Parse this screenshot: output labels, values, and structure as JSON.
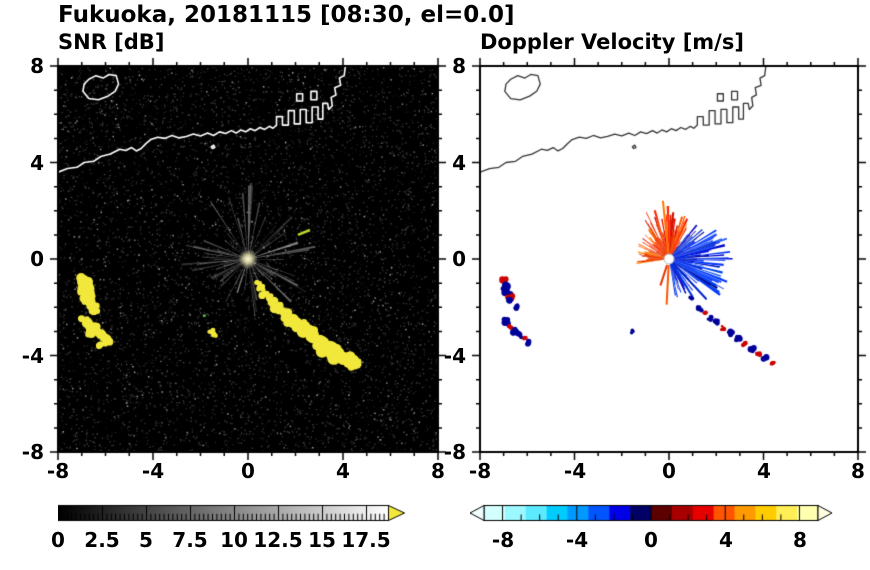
{
  "title": "Fukuoka, 20181115 [08:30, el=0.0]",
  "coastline": [
    {
      "closed": true,
      "points": [
        [
          -6.95,
          6.95
        ],
        [
          -6.7,
          6.65
        ],
        [
          -6.3,
          6.6
        ],
        [
          -5.9,
          6.75
        ],
        [
          -5.6,
          6.95
        ],
        [
          -5.45,
          7.25
        ],
        [
          -5.55,
          7.6
        ],
        [
          -5.85,
          7.65
        ],
        [
          -6.1,
          7.5
        ],
        [
          -6.4,
          7.6
        ],
        [
          -6.7,
          7.45
        ],
        [
          -6.9,
          7.25
        ]
      ]
    },
    {
      "closed": false,
      "points": [
        [
          -8,
          3.6
        ],
        [
          -7.6,
          3.75
        ],
        [
          -7.2,
          3.8
        ],
        [
          -6.9,
          4.0
        ],
        [
          -6.5,
          4.05
        ],
        [
          -6.2,
          4.25
        ],
        [
          -5.8,
          4.35
        ],
        [
          -5.4,
          4.55
        ],
        [
          -5.15,
          4.5
        ],
        [
          -4.9,
          4.62
        ],
        [
          -4.7,
          4.48
        ],
        [
          -4.5,
          4.58
        ],
        [
          -4.3,
          4.78
        ],
        [
          -4.1,
          4.95
        ],
        [
          -3.8,
          5.05
        ],
        [
          -3.5,
          5.0
        ],
        [
          -3.2,
          5.12
        ],
        [
          -2.9,
          5.02
        ],
        [
          -2.6,
          5.08
        ],
        [
          -2.3,
          5.18
        ],
        [
          -2.0,
          5.1
        ],
        [
          -1.7,
          5.22
        ],
        [
          -1.45,
          5.12
        ],
        [
          -1.2,
          5.27
        ],
        [
          -0.95,
          5.2
        ],
        [
          -0.7,
          5.32
        ],
        [
          -0.5,
          5.22
        ],
        [
          -0.3,
          5.35
        ],
        [
          -0.1,
          5.27
        ],
        [
          0.1,
          5.4
        ],
        [
          0.3,
          5.32
        ],
        [
          0.5,
          5.45
        ],
        [
          0.7,
          5.37
        ],
        [
          0.9,
          5.5
        ],
        [
          1.05,
          5.42
        ],
        [
          1.2,
          5.55
        ],
        [
          1.2,
          5.9
        ],
        [
          1.45,
          5.9
        ],
        [
          1.45,
          5.55
        ],
        [
          1.7,
          5.55
        ],
        [
          1.7,
          6.15
        ],
        [
          1.95,
          6.15
        ],
        [
          1.95,
          5.6
        ],
        [
          2.2,
          5.6
        ],
        [
          2.2,
          6.2
        ],
        [
          2.45,
          6.2
        ],
        [
          2.45,
          5.65
        ],
        [
          2.7,
          5.65
        ],
        [
          2.7,
          6.3
        ],
        [
          2.95,
          6.3
        ],
        [
          2.95,
          5.8
        ],
        [
          3.15,
          5.8
        ],
        [
          3.15,
          6.45
        ],
        [
          3.35,
          6.45
        ],
        [
          3.4,
          6.2
        ],
        [
          3.55,
          6.35
        ],
        [
          3.5,
          6.7
        ],
        [
          3.7,
          6.8
        ],
        [
          3.65,
          7.1
        ],
        [
          3.9,
          7.2
        ],
        [
          3.85,
          7.5
        ],
        [
          4.05,
          7.6
        ],
        [
          4.1,
          8.0
        ]
      ]
    },
    {
      "closed": true,
      "points": [
        [
          2.05,
          6.55
        ],
        [
          2.05,
          6.85
        ],
        [
          2.3,
          6.85
        ],
        [
          2.3,
          6.55
        ]
      ]
    },
    {
      "closed": true,
      "points": [
        [
          2.65,
          6.6
        ],
        [
          2.65,
          6.95
        ],
        [
          2.9,
          6.95
        ],
        [
          2.9,
          6.6
        ]
      ]
    },
    {
      "closed": true,
      "points": [
        [
          -1.55,
          4.65
        ],
        [
          -1.45,
          4.72
        ],
        [
          -1.4,
          4.62
        ],
        [
          -1.5,
          4.58
        ]
      ]
    }
  ],
  "chart_data": [
    {
      "type": "heatmap",
      "name": "snr",
      "title": "SNR [dB]",
      "xlim": [
        -8,
        8
      ],
      "ylim": [
        -8,
        8
      ],
      "xticks": [
        -8,
        -4,
        0,
        4,
        8
      ],
      "yticks": [
        8,
        4,
        0,
        -4,
        -8
      ],
      "colorbar": {
        "range": [
          0,
          18.75
        ],
        "ticks": [
          0,
          2.5,
          5,
          7.5,
          10,
          12.5,
          15,
          17.5
        ],
        "colormap": "grayscale",
        "gradient": [
          "#000000",
          "#ffffff"
        ],
        "arrow_color": "#f2e83c"
      },
      "style": {
        "background": "#000000",
        "center": [
          0.0,
          0.0
        ],
        "streak_count": 90,
        "echo_color": "#f2e83c",
        "coast_color": "#ffffff",
        "specks": [
          {
            "x": 2.1,
            "y": 1.0,
            "angle": 22,
            "len": 0.55,
            "color": "#b8d832"
          },
          {
            "x": -1.9,
            "y": -2.35,
            "angle": 0,
            "len": 0.12,
            "color": "#5abf3a"
          }
        ]
      },
      "echoes": [
        [
          [
            -7.0,
            -0.85,
            0.2
          ],
          [
            -6.85,
            -1.05,
            0.24
          ],
          [
            -6.9,
            -1.3,
            0.2
          ],
          [
            -6.75,
            -1.5,
            0.24
          ],
          [
            -6.8,
            -1.75,
            0.18
          ],
          [
            -6.6,
            -1.9,
            0.2
          ],
          [
            -6.45,
            -2.05,
            0.16
          ]
        ],
        [
          [
            -6.9,
            -2.6,
            0.18
          ],
          [
            -6.7,
            -2.78,
            0.2
          ],
          [
            -6.5,
            -2.9,
            0.18
          ],
          [
            -6.62,
            -3.1,
            0.16
          ],
          [
            -6.3,
            -3.05,
            0.14
          ],
          [
            -6.1,
            -3.22,
            0.18
          ],
          [
            -5.95,
            -3.42,
            0.16
          ],
          [
            -6.18,
            -3.52,
            0.13
          ]
        ],
        [
          [
            0.42,
            -1.02,
            0.1
          ],
          [
            0.55,
            -1.2,
            0.13
          ],
          [
            0.7,
            -1.45,
            0.15
          ],
          [
            0.9,
            -1.62,
            0.13
          ],
          [
            1.05,
            -1.8,
            0.17
          ],
          [
            1.25,
            -2.0,
            0.19
          ],
          [
            1.45,
            -2.2,
            0.16
          ],
          [
            1.62,
            -2.35,
            0.18
          ],
          [
            1.8,
            -2.5,
            0.22
          ],
          [
            2.0,
            -2.65,
            0.19
          ],
          [
            2.2,
            -2.8,
            0.22
          ],
          [
            2.45,
            -2.95,
            0.25
          ],
          [
            2.65,
            -3.1,
            0.22
          ],
          [
            2.85,
            -3.3,
            0.26
          ],
          [
            3.1,
            -3.5,
            0.24
          ],
          [
            3.3,
            -3.65,
            0.27
          ],
          [
            3.55,
            -3.8,
            0.25
          ],
          [
            3.8,
            -3.95,
            0.27
          ],
          [
            4.05,
            -4.1,
            0.22
          ],
          [
            4.3,
            -4.22,
            0.25
          ],
          [
            4.5,
            -4.38,
            0.2
          ]
        ],
        [
          [
            -1.55,
            -3.0,
            0.1
          ],
          [
            -1.42,
            -3.12,
            0.09
          ]
        ]
      ]
    },
    {
      "type": "heatmap",
      "name": "doppler",
      "title": "Doppler Velocity [m/s]",
      "xlim": [
        -8,
        8
      ],
      "ylim": [
        -8,
        8
      ],
      "xticks": [
        -8,
        -4,
        0,
        4,
        8
      ],
      "yticks": [
        8,
        4,
        0,
        -4,
        -8
      ],
      "colorbar": {
        "range": [
          -9,
          9
        ],
        "ticks": [
          -8,
          -4,
          0,
          4,
          8
        ],
        "colormap": "doppler",
        "colors": [
          "#d4ffff",
          "#9cf8ff",
          "#5ceaff",
          "#00ccff",
          "#0099ff",
          "#0055ff",
          "#0000e6",
          "#000066",
          "#5c0000",
          "#a80000",
          "#e60000",
          "#ff5500",
          "#ff9900",
          "#ffcc00",
          "#ffee55",
          "#ffffb0"
        ],
        "arrow_left_color": "#f0ffff",
        "arrow_right_color": "#ffffe0"
      },
      "style": {
        "background": "#ffffff",
        "center": [
          0.0,
          0.0
        ],
        "coast_color": "#333333"
      },
      "fans": [
        {
          "a0": -80,
          "a1": -35,
          "rmin": 0.3,
          "rmax": 1.7,
          "palette": [
            "#0033ff",
            "#0000cc",
            "#2255ff",
            "#000088",
            "#0044ee",
            "#1133dd"
          ]
        },
        {
          "a0": -35,
          "a1": 32,
          "rmin": 0.5,
          "rmax": 2.7,
          "palette": [
            "#0033ff",
            "#0000cc",
            "#2255ff",
            "#000088",
            "#0044ee",
            "#1133dd"
          ]
        },
        {
          "a0": 32,
          "a1": 56,
          "rmin": 0.4,
          "rmax": 1.9,
          "palette": [
            "#0033ff",
            "#0000cc",
            "#2255ff",
            "#000088",
            "#0044ee",
            "#1133dd"
          ]
        },
        {
          "a0": 56,
          "a1": 126,
          "rmin": 0.5,
          "rmax": 2.25,
          "palette": [
            "#ff5500",
            "#ff2a00",
            "#ff8800",
            "#e61500",
            "#ff6a00",
            "#cc1100"
          ]
        },
        {
          "a0": 126,
          "a1": 190,
          "rmin": 0.3,
          "rmax": 1.45,
          "palette": [
            "#ff5500",
            "#ff2a00",
            "#ff8800",
            "#e61500",
            "#ff6a00",
            "#cc1100"
          ]
        }
      ],
      "needles": [
        {
          "angle": 267,
          "len": 1.9,
          "color": "#ff5500"
        },
        {
          "angle": 252,
          "len": 1.15,
          "color": "#e63300"
        },
        {
          "angle": -47,
          "len": 2.3,
          "color": "#0022cc"
        },
        {
          "angle": -58,
          "len": 1.85,
          "color": "#0033dd"
        },
        {
          "angle": 96,
          "len": 2.45,
          "color": "#ff7700"
        }
      ],
      "speckles": [
        [
          -7.0,
          -0.9,
          0.13,
          "#cc0000"
        ],
        [
          -6.9,
          -1.12,
          0.17,
          "#000099"
        ],
        [
          -6.85,
          -1.38,
          0.17,
          "#000099"
        ],
        [
          -6.72,
          -1.58,
          0.13,
          "#cc0000"
        ],
        [
          -6.68,
          -1.78,
          0.15,
          "#000099"
        ],
        [
          -6.5,
          -1.97,
          0.13,
          "#000099"
        ],
        [
          -6.88,
          -2.62,
          0.15,
          "#000099"
        ],
        [
          -6.7,
          -2.8,
          0.11,
          "#cc0000"
        ],
        [
          -6.5,
          -2.95,
          0.15,
          "#000099"
        ],
        [
          -6.32,
          -3.15,
          0.13,
          "#000099"
        ],
        [
          -6.1,
          -3.3,
          0.1,
          "#cc0000"
        ],
        [
          -5.95,
          -3.45,
          0.13,
          "#000099"
        ],
        [
          -1.55,
          -3.02,
          0.09,
          "#000099"
        ],
        [
          0.95,
          -1.62,
          0.09,
          "#000099"
        ],
        [
          1.3,
          -2.05,
          0.13,
          "#000099"
        ],
        [
          1.52,
          -2.25,
          0.1,
          "#cc0000"
        ],
        [
          1.75,
          -2.45,
          0.13,
          "#000099"
        ],
        [
          2.0,
          -2.62,
          0.11,
          "#000099"
        ],
        [
          2.3,
          -2.85,
          0.1,
          "#cc0000"
        ],
        [
          2.6,
          -3.05,
          0.13,
          "#000099"
        ],
        [
          2.9,
          -3.3,
          0.14,
          "#000099"
        ],
        [
          3.2,
          -3.55,
          0.11,
          "#cc0000"
        ],
        [
          3.5,
          -3.75,
          0.14,
          "#000099"
        ],
        [
          3.8,
          -3.95,
          0.1,
          "#cc0000"
        ],
        [
          4.1,
          -4.1,
          0.13,
          "#000099"
        ],
        [
          4.4,
          -4.3,
          0.1,
          "#cc0000"
        ]
      ]
    }
  ]
}
